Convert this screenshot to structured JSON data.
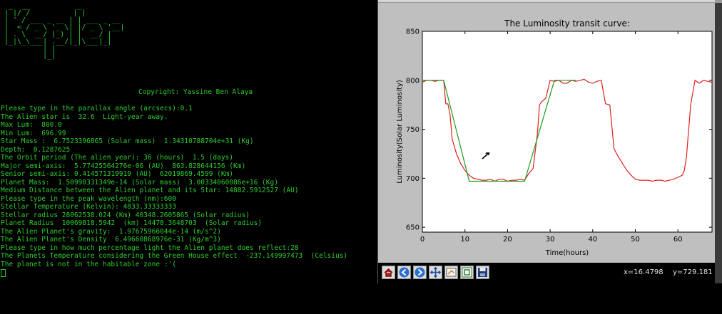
{
  "terminal": {
    "ascii_art": " _  __           _\n| |/ /          | |\n| ' / ___ _ __ | | ___ _ __\n|  < / _ \\ '_ \\| |/ _ \\ '__|\n| . \\  __/ |_) | |  __/ |\n|_|\\_\\___| .__/|_|\\___|_|\n         | |\n         |_|",
    "copyright": "Copyright: Yassine Ben Alaya",
    "lines": [
      "Please type in the parallax angle (arcsecs):0.1",
      "The Alien star is  32.6  Light-year away.",
      "Max Lum:  800.0",
      "Min Lum:  696.99",
      "Star Mass :  6.7523396865 (Solar mass)  1.34310788704e+31 (Kg)",
      "Depth:  0.1287625",
      "The Orbit period (The alien year): 36 (hours)  1.5 (days)",
      "Major semi-axis:  5.77425564276e-06 (AU)  863.828644156 (Km)",
      "Senior semi-axis: 0.414571319919 (AU)  62019869.4599 (Km)",
      "Planet Mass:  1.50990331349e-14 (Solar mass)  3.00334060086e+16 (Kg)",
      "Medium Distance between the Alien planet and its Star: 14882.5912527 (AU)",
      "Please type in the peak wavelength (nm):600",
      "Stellar Temperature (Kelvin): 4833.33333333",
      "Stellar radius 28062538.024 (Km) 40348.2605865 (Solar radius)",
      "Planet Radius  10069818.5942  (km) 14478.3648703  (Solar radius)",
      "The Alien Planet's gravity:  1.97675966044e-14 (m/s^2)",
      "The Alien Planet's Density  6.49660868976e-31 (Kg/m^3)",
      "Please type in how much percentage light the Alien planet does reflect:28",
      "The Planets Temperature considering the Green House effect  -237.149997473  (Celsius)",
      "The planet is not in the habitable zone :'("
    ]
  },
  "plot_window": {
    "toolbar_icons": [
      "home-icon",
      "back-arrow-icon",
      "forward-arrow-icon",
      "pan-move-icon",
      "zoom-icon",
      "subplots-config-icon",
      "save-icon"
    ],
    "coord_x": "x=16.4798",
    "coord_y": "y=729.181",
    "colors": {
      "observed": "#e02020",
      "model": "#1a9a1a"
    }
  },
  "chart_data": {
    "type": "line",
    "title": "The Luminosity transit curve:",
    "xlabel": "Time(hours)",
    "ylabel": "Luminosity(Solar Luminosity)",
    "xlim": [
      0,
      68
    ],
    "ylim": [
      645,
      850
    ],
    "xticks": [
      0,
      10,
      20,
      30,
      40,
      50,
      60
    ],
    "yticks": [
      650,
      700,
      750,
      800,
      850
    ],
    "grid": false,
    "series": [
      {
        "color": "#e02020",
        "x": [
          0,
          1,
          2,
          3,
          4,
          5,
          5.5,
          6,
          6.5,
          7,
          8,
          9,
          10,
          11,
          12,
          13,
          14,
          15,
          16,
          17,
          18,
          19,
          20,
          21,
          22,
          23,
          24,
          25,
          26,
          27,
          27.5,
          28,
          29,
          30,
          31,
          32,
          33,
          34,
          35,
          36,
          37,
          38,
          39,
          40,
          41,
          42,
          43,
          44,
          45,
          46,
          47,
          48,
          49,
          50,
          51,
          52,
          53,
          54,
          55,
          56,
          57,
          58,
          59,
          60,
          61,
          61.5,
          62,
          63,
          64,
          65,
          66,
          67,
          68
        ],
        "y": [
          798,
          800,
          800,
          799,
          800,
          800,
          776,
          776,
          765,
          740,
          725,
          715,
          708,
          703,
          700,
          699,
          698,
          698,
          699,
          697,
          699,
          699,
          697,
          698,
          698,
          699,
          698,
          705,
          710,
          745,
          775,
          778,
          782,
          800,
          799,
          800,
          797,
          797,
          800,
          799,
          800,
          801,
          798,
          797,
          799,
          800,
          776,
          775,
          730,
          722,
          715,
          708,
          703,
          699,
          698,
          698,
          698,
          697,
          698,
          698,
          697,
          698,
          699,
          701,
          703,
          708,
          722,
          775,
          800,
          797,
          800,
          799,
          798
        ]
      },
      {
        "color": "#1a9a1a",
        "x": [
          0,
          5,
          11,
          24,
          31,
          36
        ],
        "y": [
          800,
          800,
          697,
          697,
          800,
          800
        ]
      }
    ]
  }
}
